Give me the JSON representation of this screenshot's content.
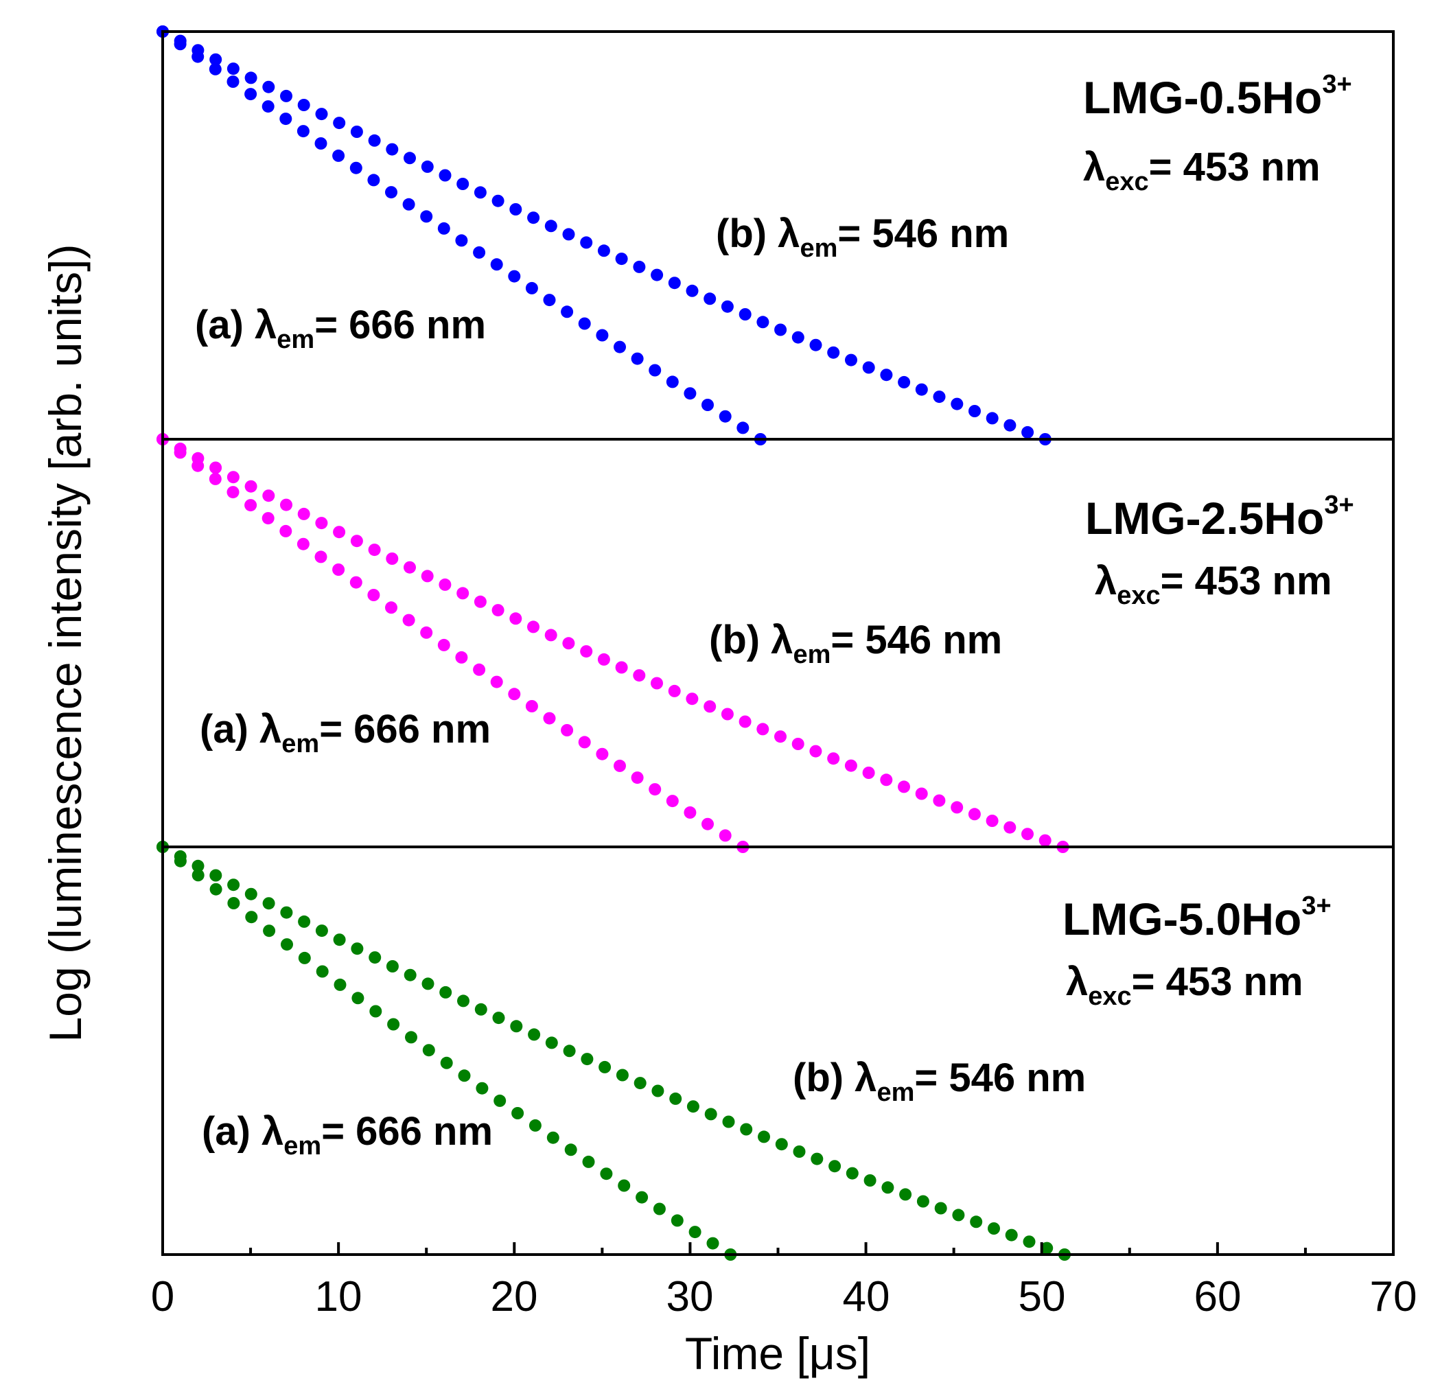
{
  "chart_data": {
    "type": "scatter",
    "xlabel": "Time [μs]",
    "ylabel": "Log (luminescence intensity [arb. units])",
    "xlim": [
      0,
      70
    ],
    "xticks": [
      "0",
      "10",
      "20",
      "30",
      "40",
      "50",
      "60",
      "70"
    ],
    "ylim": [
      0,
      1
    ],
    "panels": [
      {
        "sample": "LMG-0.5Ho",
        "sample_sup": "3+",
        "exc_symbol": "λ",
        "exc_sub": "exc",
        "exc_value": "= 453 nm",
        "color": "#0000ff",
        "series": [
          {
            "name": "(b) λem= 546 nm",
            "prefix": "(b) λ",
            "sub": "em",
            "value": "= 546 nm",
            "x_end": 50.2,
            "curvature": 0.15
          },
          {
            "name": "(a) λem= 666 nm",
            "prefix": "(a) λ",
            "sub": "em",
            "value": "= 666 nm",
            "x_end": 34.0,
            "curvature": 0.05
          }
        ]
      },
      {
        "sample": "LMG-2.5Ho",
        "sample_sup": "3+",
        "exc_symbol": "λ",
        "exc_sub": "exc",
        "exc_value": "= 453 nm",
        "color": "#ff00ff",
        "series": [
          {
            "name": "(b) λem= 546 nm",
            "prefix": "(b) λ",
            "sub": "em",
            "value": "= 546 nm",
            "x_end": 51.2,
            "curvature": 0.2
          },
          {
            "name": "(a) λem= 666 nm",
            "prefix": "(a) λ",
            "sub": "em",
            "value": "= 666 nm",
            "x_end": 33.0,
            "curvature": 0.08
          }
        ]
      },
      {
        "sample": "LMG-5.0Ho",
        "sample_sup": "3+",
        "exc_symbol": "λ",
        "exc_sub": "exc",
        "exc_value": "= 453 nm",
        "color": "#008000",
        "series": [
          {
            "name": "(b) λem= 546 nm",
            "prefix": "(b) λ",
            "sub": "em",
            "value": "= 546 nm",
            "x_end": 51.3,
            "curvature": 0.2
          },
          {
            "name": "(a) λem= 666 nm",
            "prefix": "(a) λ",
            "sub": "em",
            "value": "= 666 nm",
            "x_end": 32.3,
            "curvature": 0.12
          }
        ]
      }
    ]
  }
}
